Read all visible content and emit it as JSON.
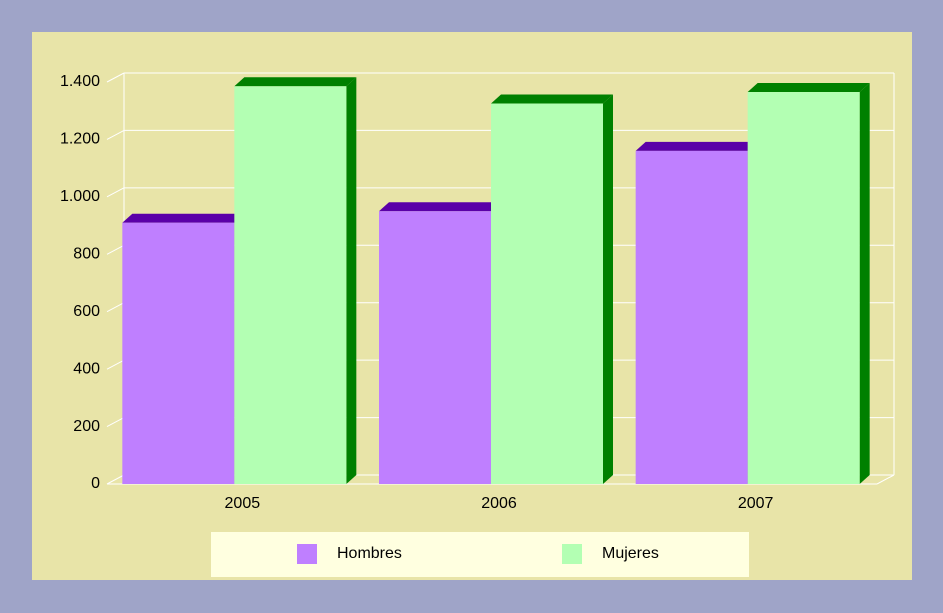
{
  "chart_data": {
    "type": "bar3d",
    "categories": [
      "2005",
      "2006",
      "2007"
    ],
    "series": [
      {
        "name": "Hombres",
        "color": "#bf7fff",
        "top_color": "#5a00a8",
        "values": [
          910,
          950,
          1160
        ]
      },
      {
        "name": "Mujeres",
        "color": "#b3ffb3",
        "top_color": "#008000",
        "values": [
          1385,
          1325,
          1365
        ]
      }
    ],
    "ylim": [
      0,
      1400
    ],
    "yticks": [
      0,
      200,
      400,
      600,
      800,
      {
        "value": 1000,
        "label": "1.000"
      },
      {
        "value": 1200,
        "label": "1.200"
      },
      {
        "value": 1400,
        "label": "1.400"
      }
    ],
    "grid": true,
    "legend": "bottom"
  }
}
